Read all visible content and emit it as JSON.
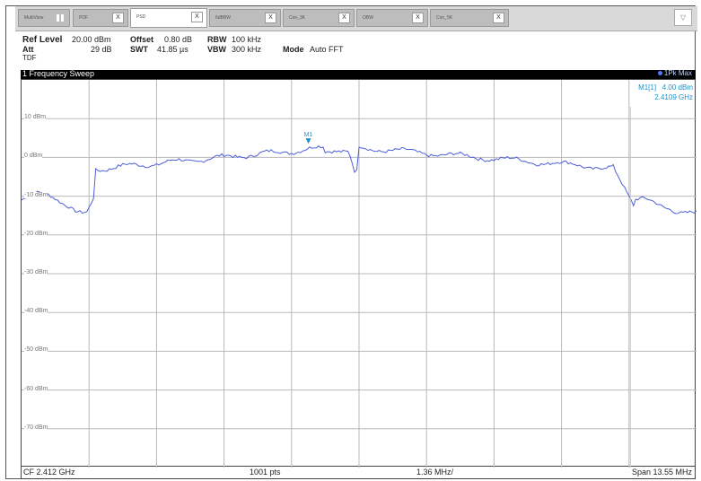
{
  "tabs": [
    {
      "label": "MultiView",
      "active": false
    },
    {
      "label": "PDF",
      "active": false
    },
    {
      "label": "PSD",
      "active": true
    },
    {
      "label": "6dBBW",
      "active": false
    },
    {
      "label": "Con_3K",
      "active": false
    },
    {
      "label": "OBW",
      "active": false
    },
    {
      "label": "Con_5K",
      "active": false
    }
  ],
  "tab_close_label": "X",
  "menu_button": "▽",
  "settings": {
    "ref_level_label": "Ref Level",
    "ref_level_value": "20.00 dBm",
    "offset_label": "Offset",
    "offset_value": "0.80 dB",
    "rbw_label": "RBW",
    "rbw_value": "100 kHz",
    "att_label": "Att",
    "att_value": "29 dB",
    "swt_label": "SWT",
    "swt_value": "41.85 µs",
    "vbw_label": "VBW",
    "vbw_value": "300 kHz",
    "mode_label": "Mode",
    "mode_value": "Auto FFT",
    "tdf_label": "TDF"
  },
  "sweep": {
    "title": "1 Frequency Sweep",
    "trace_label": "1Pk Max"
  },
  "marker": {
    "name": "M1[1]",
    "level": "4.00 dBm",
    "frequency": "2.4109 GHz",
    "label": "M1"
  },
  "y_axis_labels": [
    "10 dBm",
    "0 dBm",
    "-10 dBm",
    "-20 dBm",
    "-30 dBm",
    "-40 dBm",
    "-50 dBm",
    "-60 dBm",
    "-70 dBm"
  ],
  "footer": {
    "cf": "CF 2.412 GHz",
    "points": "1001 pts",
    "div": "1.36 MHz/",
    "span": "Span 13.55 MHz"
  },
  "colors": {
    "trace": "#4e5fd9",
    "marker": "#1e90c8",
    "grid": "#b8b8b8"
  }
}
